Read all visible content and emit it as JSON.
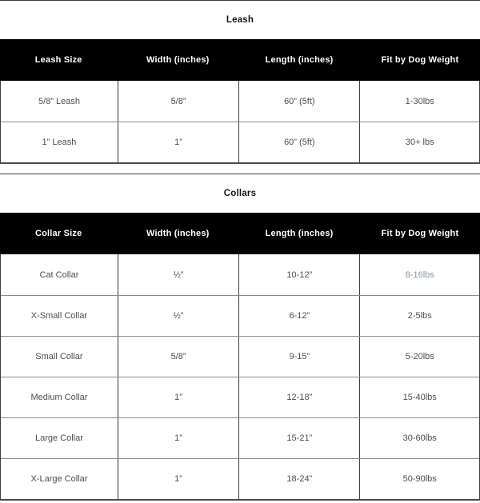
{
  "colors": {
    "header_bg": "#000000",
    "header_text": "#ffffff",
    "body_text": "#4d4d4d",
    "muted_text": "#8d939b",
    "row_border": "#8a8a8a",
    "column_border": "#3d3d3d",
    "section_border": "#3c3c3c"
  },
  "sections": [
    {
      "id": "leash",
      "title": "Leash",
      "columns": [
        "Leash Size",
        "Width (inches)",
        "Length (inches)",
        "Fit by Dog Weight"
      ],
      "rows": [
        {
          "cells": [
            "5/8” Leash",
            "5/8”",
            "60” (5ft)",
            "1-30lbs"
          ]
        },
        {
          "cells": [
            "1” Leash",
            "1”",
            "60” (5ft)",
            "30+ lbs"
          ]
        }
      ],
      "muted_cells": []
    },
    {
      "id": "collars",
      "title": "Collars",
      "columns": [
        "Collar Size",
        "Width (inches)",
        "Length (inches)",
        "Fit by Dog Weight"
      ],
      "rows": [
        {
          "cells": [
            "Cat Collar",
            "½”",
            "10-12”",
            "8-16lbs"
          ]
        },
        {
          "cells": [
            "X-Small Collar",
            "½”",
            "6-12”",
            "2-5lbs"
          ]
        },
        {
          "cells": [
            "Small Collar",
            "5/8”",
            "9-15”",
            "5-20lbs"
          ]
        },
        {
          "cells": [
            "Medium Collar",
            "1”",
            "12-18”",
            "15-40lbs"
          ]
        },
        {
          "cells": [
            "Large Collar",
            "1”",
            "15-21”",
            "30-60lbs"
          ]
        },
        {
          "cells": [
            "X-Large Collar",
            "1”",
            "18-24”",
            "50-90lbs"
          ]
        }
      ],
      "muted_cells": [
        [
          0,
          3
        ]
      ]
    }
  ]
}
